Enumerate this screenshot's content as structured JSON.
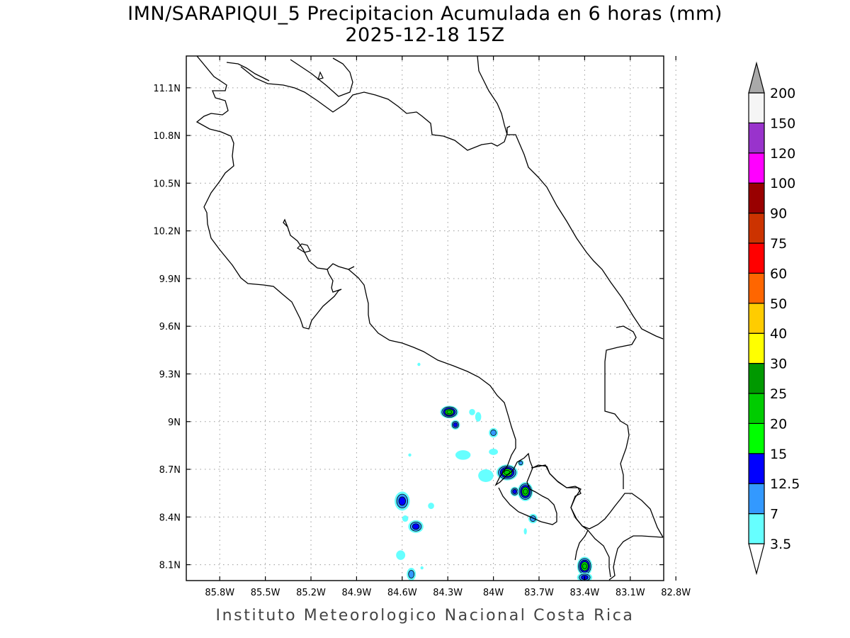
{
  "title_line1": "IMN/SARAPIQUI_5 Precipitacion Acumulada en 6 horas (mm)",
  "title_line2": "2025-12-18 15Z",
  "credit": "Instituto Meteorologico Nacional Costa Rica",
  "map": {
    "lon_range": [
      -86.02,
      -82.88
    ],
    "lat_range": [
      8.0,
      11.3
    ],
    "lon_ticks": [
      {
        "value": -85.8,
        "label": "85.8W"
      },
      {
        "value": -85.5,
        "label": "85.5W"
      },
      {
        "value": -85.2,
        "label": "85.2W"
      },
      {
        "value": -84.9,
        "label": "84.9W"
      },
      {
        "value": -84.6,
        "label": "84.6W"
      },
      {
        "value": -84.3,
        "label": "84.3W"
      },
      {
        "value": -84.0,
        "label": "84W"
      },
      {
        "value": -83.7,
        "label": "83.7W"
      },
      {
        "value": -83.4,
        "label": "83.4W"
      },
      {
        "value": -83.1,
        "label": "83.1W"
      },
      {
        "value": -82.8,
        "label": "82.8W"
      }
    ],
    "lat_ticks": [
      {
        "value": 11.1,
        "label": "11.1N"
      },
      {
        "value": 10.8,
        "label": "10.8N"
      },
      {
        "value": 10.5,
        "label": "10.5N"
      },
      {
        "value": 10.2,
        "label": "10.2N"
      },
      {
        "value": 9.9,
        "label": "9.9N"
      },
      {
        "value": 9.6,
        "label": "9.6N"
      },
      {
        "value": 9.3,
        "label": "9.3N"
      },
      {
        "value": 9.0,
        "label": "9N"
      },
      {
        "value": 8.7,
        "label": "8.7N"
      },
      {
        "value": 8.4,
        "label": "8.4N"
      },
      {
        "value": 8.1,
        "label": "8.1N"
      }
    ],
    "grid": "dotted"
  },
  "colorbar": {
    "levels": [
      {
        "label": "3.5",
        "color": "#66ffff"
      },
      {
        "label": "7",
        "color": "#3399ff"
      },
      {
        "label": "12.5",
        "color": "#0000ff"
      },
      {
        "label": "15",
        "color": "#00ff00"
      },
      {
        "label": "20",
        "color": "#00cc00"
      },
      {
        "label": "25",
        "color": "#009900"
      },
      {
        "label": "30",
        "color": "#ffff00"
      },
      {
        "label": "40",
        "color": "#ffcc00"
      },
      {
        "label": "50",
        "color": "#ff6600"
      },
      {
        "label": "60",
        "color": "#ff0000"
      },
      {
        "label": "75",
        "color": "#cc3300"
      },
      {
        "label": "90",
        "color": "#990000"
      },
      {
        "label": "100",
        "color": "#ff00ff"
      },
      {
        "label": "120",
        "color": "#9933cc"
      },
      {
        "label": "150",
        "color": "#f5f5f5"
      },
      {
        "label": "200",
        "color": ""
      }
    ],
    "above_color": "#a9a9a9",
    "below_color": "#ffffff"
  },
  "cells": [
    {
      "lon": -84.29,
      "lat": 9.06,
      "rx": 0.06,
      "ry": 0.04,
      "max": 20
    },
    {
      "lon": -84.25,
      "lat": 8.98,
      "rx": 0.03,
      "ry": 0.03,
      "max": 12.5
    },
    {
      "lon": -84.14,
      "lat": 9.06,
      "rx": 0.02,
      "ry": 0.02,
      "max": 3.5
    },
    {
      "lon": -84.1,
      "lat": 9.03,
      "rx": 0.02,
      "ry": 0.03,
      "max": 3.5
    },
    {
      "lon": -84.0,
      "lat": 8.93,
      "rx": 0.03,
      "ry": 0.03,
      "max": 7
    },
    {
      "lon": -84.2,
      "lat": 8.79,
      "rx": 0.05,
      "ry": 0.03,
      "max": 3.5
    },
    {
      "lon": -84.0,
      "lat": 8.81,
      "rx": 0.03,
      "ry": 0.02,
      "max": 3.5
    },
    {
      "lon": -83.91,
      "lat": 8.68,
      "rx": 0.07,
      "ry": 0.05,
      "max": 20
    },
    {
      "lon": -84.05,
      "lat": 8.66,
      "rx": 0.05,
      "ry": 0.04,
      "max": 3.5
    },
    {
      "lon": -83.86,
      "lat": 8.56,
      "rx": 0.03,
      "ry": 0.03,
      "max": 12.5
    },
    {
      "lon": -83.79,
      "lat": 8.56,
      "rx": 0.05,
      "ry": 0.06,
      "max": 20
    },
    {
      "lon": -83.82,
      "lat": 8.74,
      "rx": 0.02,
      "ry": 0.02,
      "max": 7
    },
    {
      "lon": -83.74,
      "lat": 8.39,
      "rx": 0.03,
      "ry": 0.03,
      "max": 7
    },
    {
      "lon": -83.79,
      "lat": 8.31,
      "rx": 0.01,
      "ry": 0.02,
      "max": 3.5
    },
    {
      "lon": -84.6,
      "lat": 8.5,
      "rx": 0.05,
      "ry": 0.06,
      "max": 12.5
    },
    {
      "lon": -84.51,
      "lat": 8.34,
      "rx": 0.05,
      "ry": 0.04,
      "max": 12.5
    },
    {
      "lon": -84.58,
      "lat": 8.39,
      "rx": 0.02,
      "ry": 0.02,
      "max": 3.5
    },
    {
      "lon": -84.41,
      "lat": 8.47,
      "rx": 0.02,
      "ry": 0.02,
      "max": 3.5
    },
    {
      "lon": -84.61,
      "lat": 8.16,
      "rx": 0.03,
      "ry": 0.03,
      "max": 3.5
    },
    {
      "lon": -84.54,
      "lat": 8.04,
      "rx": 0.03,
      "ry": 0.04,
      "max": 7
    },
    {
      "lon": -84.47,
      "lat": 8.08,
      "rx": 0.01,
      "ry": 0.01,
      "max": 3.5
    },
    {
      "lon": -84.55,
      "lat": 8.79,
      "rx": 0.01,
      "ry": 0.01,
      "max": 3.5
    },
    {
      "lon": -84.49,
      "lat": 9.36,
      "rx": 0.01,
      "ry": 0.01,
      "max": 3.5
    },
    {
      "lon": -83.4,
      "lat": 8.09,
      "rx": 0.05,
      "ry": 0.06,
      "max": 20
    },
    {
      "lon": -83.4,
      "lat": 8.02,
      "rx": 0.05,
      "ry": 0.03,
      "max": 12.5
    }
  ]
}
